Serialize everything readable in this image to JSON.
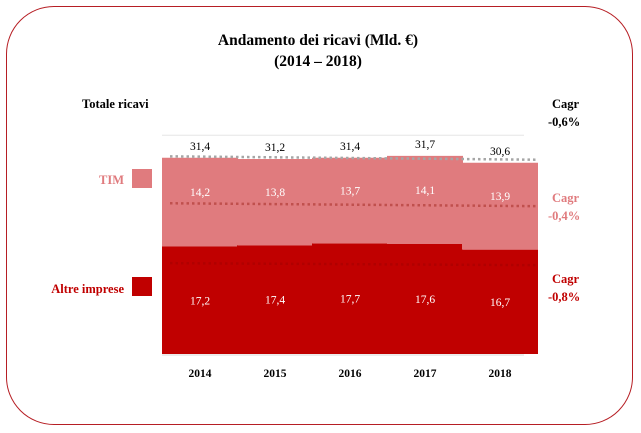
{
  "chart_data": {
    "type": "bar",
    "stacked": true,
    "title": "Andamento dei ricavi (Mld. €)",
    "subtitle": "(2014 – 2018)",
    "categories": [
      "2014",
      "2015",
      "2016",
      "2017",
      "2018"
    ],
    "series": [
      {
        "name": "Altre imprese",
        "values": [
          "17,2",
          "17,4",
          "17,7",
          "17,6",
          "16,7"
        ],
        "numeric": [
          17.2,
          17.4,
          17.7,
          17.6,
          16.7
        ],
        "color": "#c00000"
      },
      {
        "name": "TIM",
        "values": [
          "14,2",
          "13,8",
          "13,7",
          "14,1",
          "13,9"
        ],
        "numeric": [
          14.2,
          13.8,
          13.7,
          14.1,
          13.9
        ],
        "color": "#e07b7e"
      }
    ],
    "totals": {
      "label": "Totale ricavi",
      "values": [
        "31,4",
        "31,2",
        "31,4",
        "31,7",
        "30,6"
      ],
      "numeric": [
        31.4,
        31.2,
        31.4,
        31.7,
        30.6
      ]
    },
    "ylim": [
      0,
      40
    ],
    "grid": true,
    "annotations": [
      {
        "label": "Cagr",
        "value": "-0,6%",
        "target": "totals",
        "color": "#a6a6a6",
        "text_color": "#000000"
      },
      {
        "label": "Cagr",
        "value": "-0,4%",
        "target": "TIM",
        "color": "#c0504d",
        "text_color": "#e07b7e"
      },
      {
        "label": "Cagr",
        "value": "-0,8%",
        "target": "Altre imprese",
        "color": "#b00000",
        "text_color": "#c00000"
      }
    ]
  }
}
